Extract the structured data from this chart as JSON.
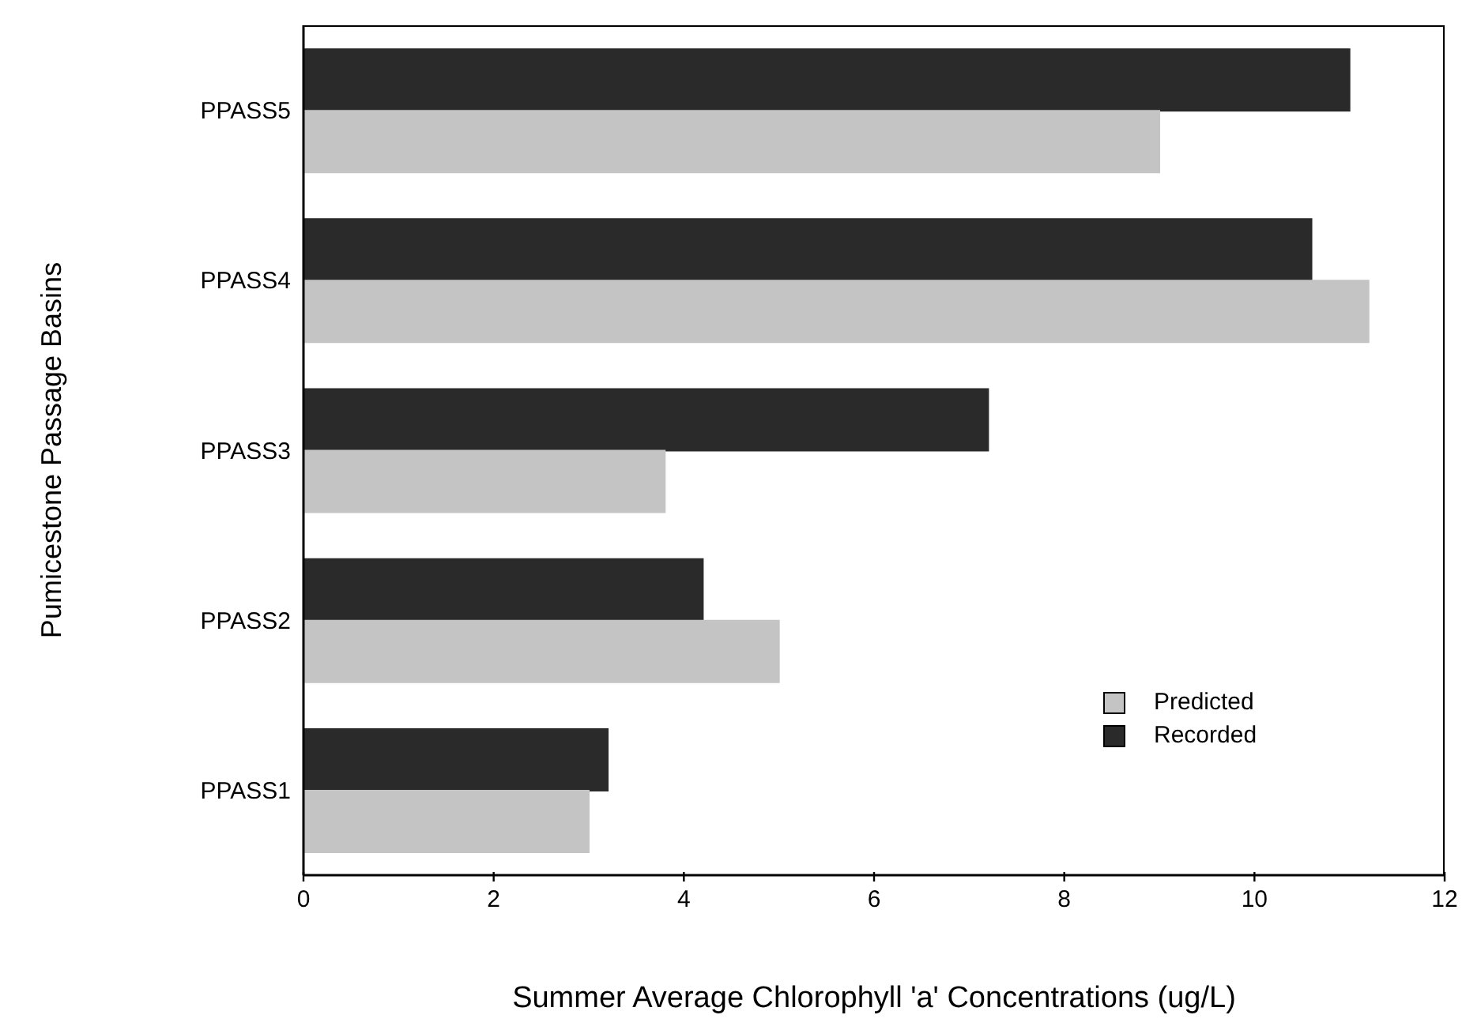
{
  "chart_data": {
    "type": "bar",
    "orientation": "horizontal",
    "xlabel": "Summer Average Chlorophyll 'a' Concentrations (ug/L)",
    "ylabel": "Pumicestone Passage Basins",
    "categories": [
      "PPASS5",
      "PPASS4",
      "PPASS3",
      "PPASS2",
      "PPASS1"
    ],
    "series": [
      {
        "name": "Predicted",
        "color": "#c4c4c4",
        "values": [
          9.0,
          11.2,
          3.8,
          5.0,
          3.0
        ]
      },
      {
        "name": "Recorded",
        "color": "#2a2a2a",
        "values": [
          11.0,
          10.6,
          7.2,
          4.2,
          3.2
        ]
      }
    ],
    "xlim": [
      0,
      12
    ],
    "xticks": [
      0,
      2,
      4,
      6,
      8,
      10,
      12
    ],
    "grid": false,
    "legend": "bottom right"
  }
}
